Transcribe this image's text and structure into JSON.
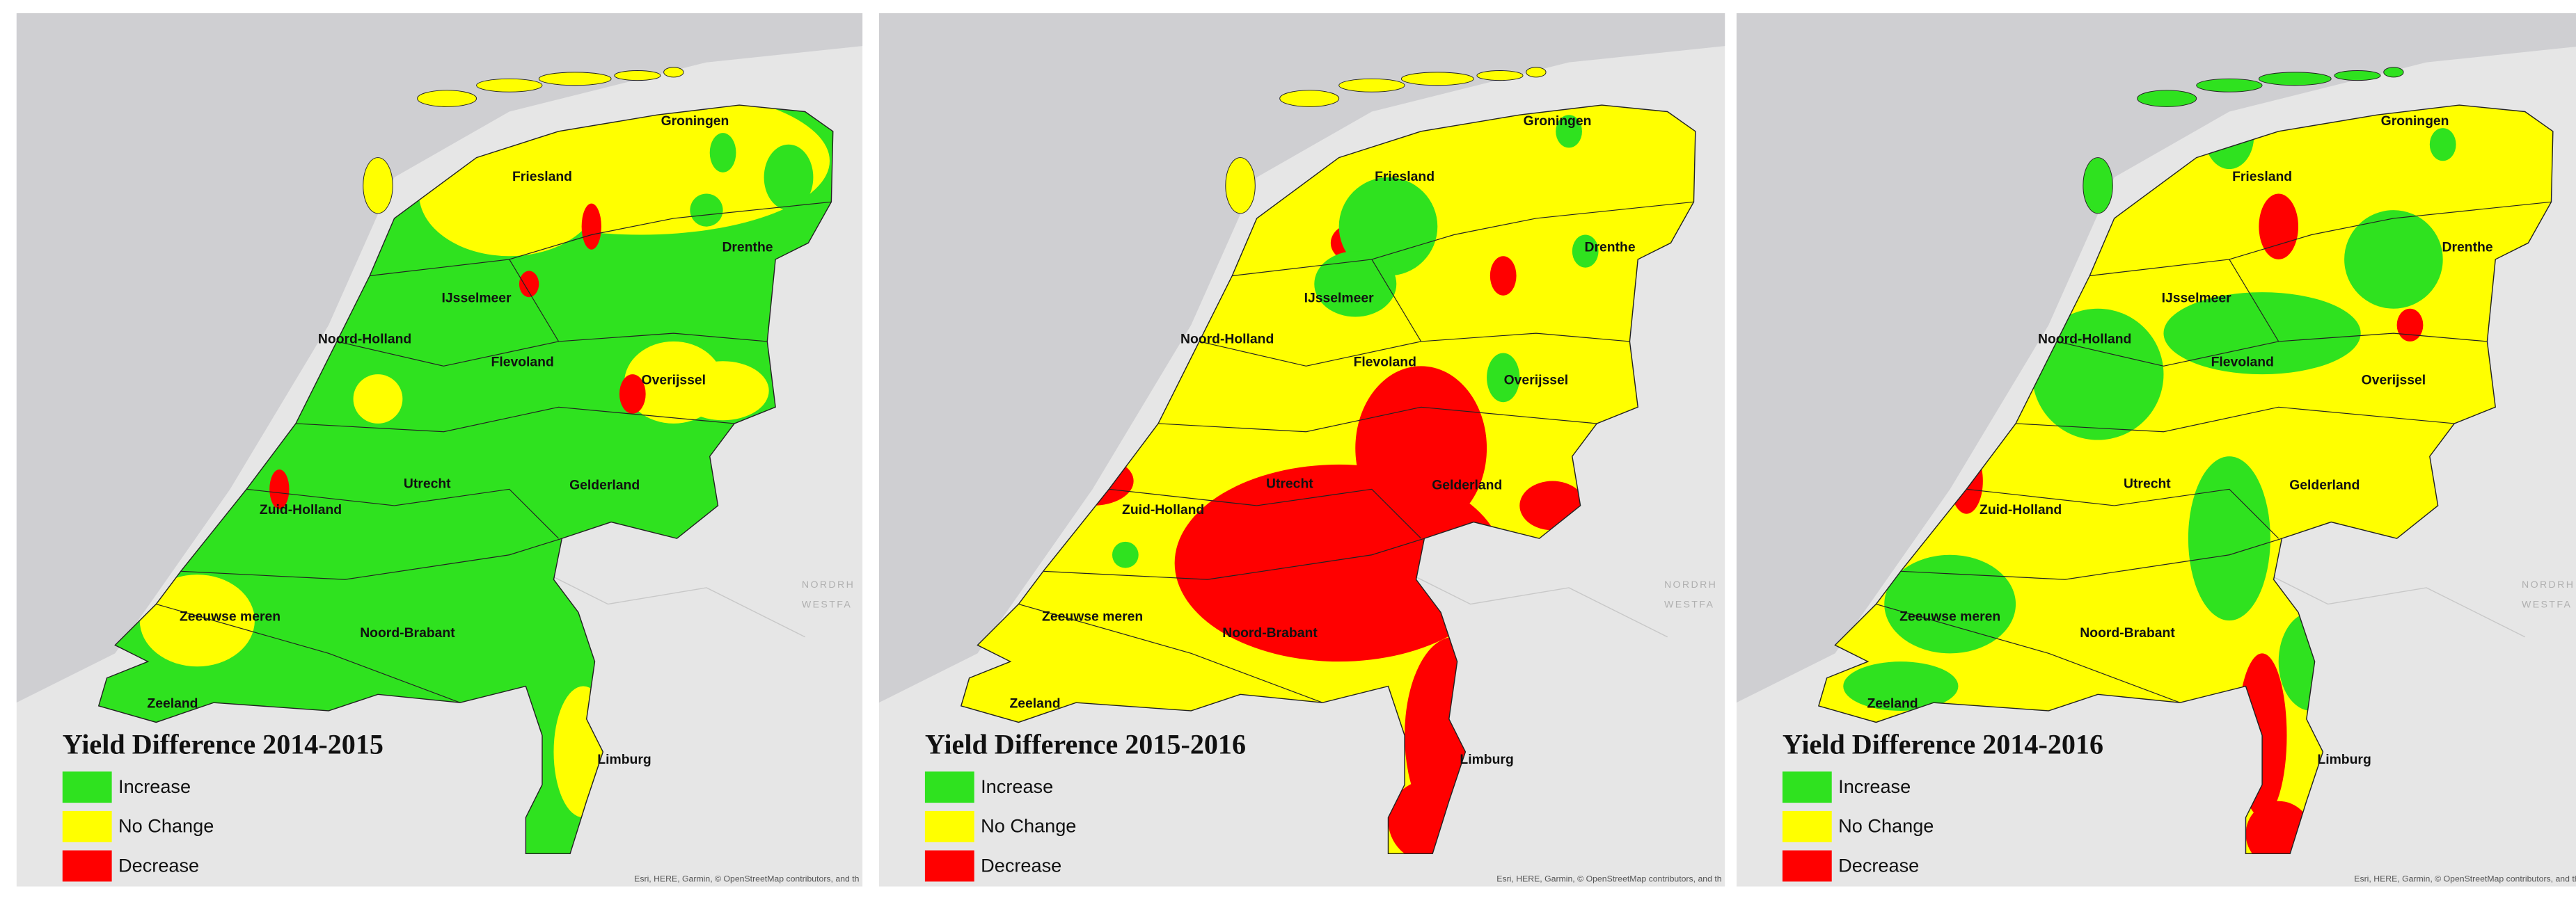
{
  "panels": [
    {
      "title": "Yield Difference 2014-2015",
      "legend": [
        {
          "label": "Increase",
          "color": "#2fe21f"
        },
        {
          "label": "No Change",
          "color": "#ffff00"
        },
        {
          "label": "Decrease",
          "color": "#ff0000"
        }
      ],
      "regions": [
        "Groningen",
        "Friesland",
        "Drenthe",
        "IJsselmeer",
        "Noord-Holland",
        "Flevoland",
        "Overijssel",
        "Utrecht",
        "Gelderland",
        "Zuid-Holland",
        "Zeeuwse meren",
        "Noord-Brabant",
        "Zeeland",
        "Limburg"
      ],
      "background_labels": [
        "NORDRH",
        "WESTFA"
      ],
      "attribution": "Esri, HERE, Garmin, © OpenStreetMap contributors, and th"
    },
    {
      "title": "Yield Difference 2015-2016",
      "legend": [
        {
          "label": "Increase",
          "color": "#2fe21f"
        },
        {
          "label": "No Change",
          "color": "#ffff00"
        },
        {
          "label": "Decrease",
          "color": "#ff0000"
        }
      ],
      "regions": [
        "Groningen",
        "Friesland",
        "Drenthe",
        "IJsselmeer",
        "Noord-Holland",
        "Flevoland",
        "Overijssel",
        "Utrecht",
        "Gelderland",
        "Zuid-Holland",
        "Zeeuwse meren",
        "Noord-Brabant",
        "Zeeland",
        "Limburg"
      ],
      "background_labels": [
        "NORDRH",
        "WESTFA"
      ],
      "attribution": "Esri, HERE, Garmin, © OpenStreetMap contributors, and th"
    },
    {
      "title": "Yield Difference 2014-2016",
      "legend": [
        {
          "label": "Increase",
          "color": "#2fe21f"
        },
        {
          "label": "No Change",
          "color": "#ffff00"
        },
        {
          "label": "Decrease",
          "color": "#ff0000"
        }
      ],
      "regions": [
        "Groningen",
        "Friesland",
        "Drenthe",
        "IJsselmeer",
        "Noord-Holland",
        "Flevoland",
        "Overijssel",
        "Utrecht",
        "Gelderland",
        "Zuid-Holland",
        "Zeeuwse meren",
        "Noord-Brabant",
        "Zeeland",
        "Limburg"
      ],
      "background_labels": [
        "NORDRH",
        "WESTFA"
      ],
      "attribution": "Esri, HERE, Garmin, © OpenStreetMap contributors, and th"
    }
  ]
}
